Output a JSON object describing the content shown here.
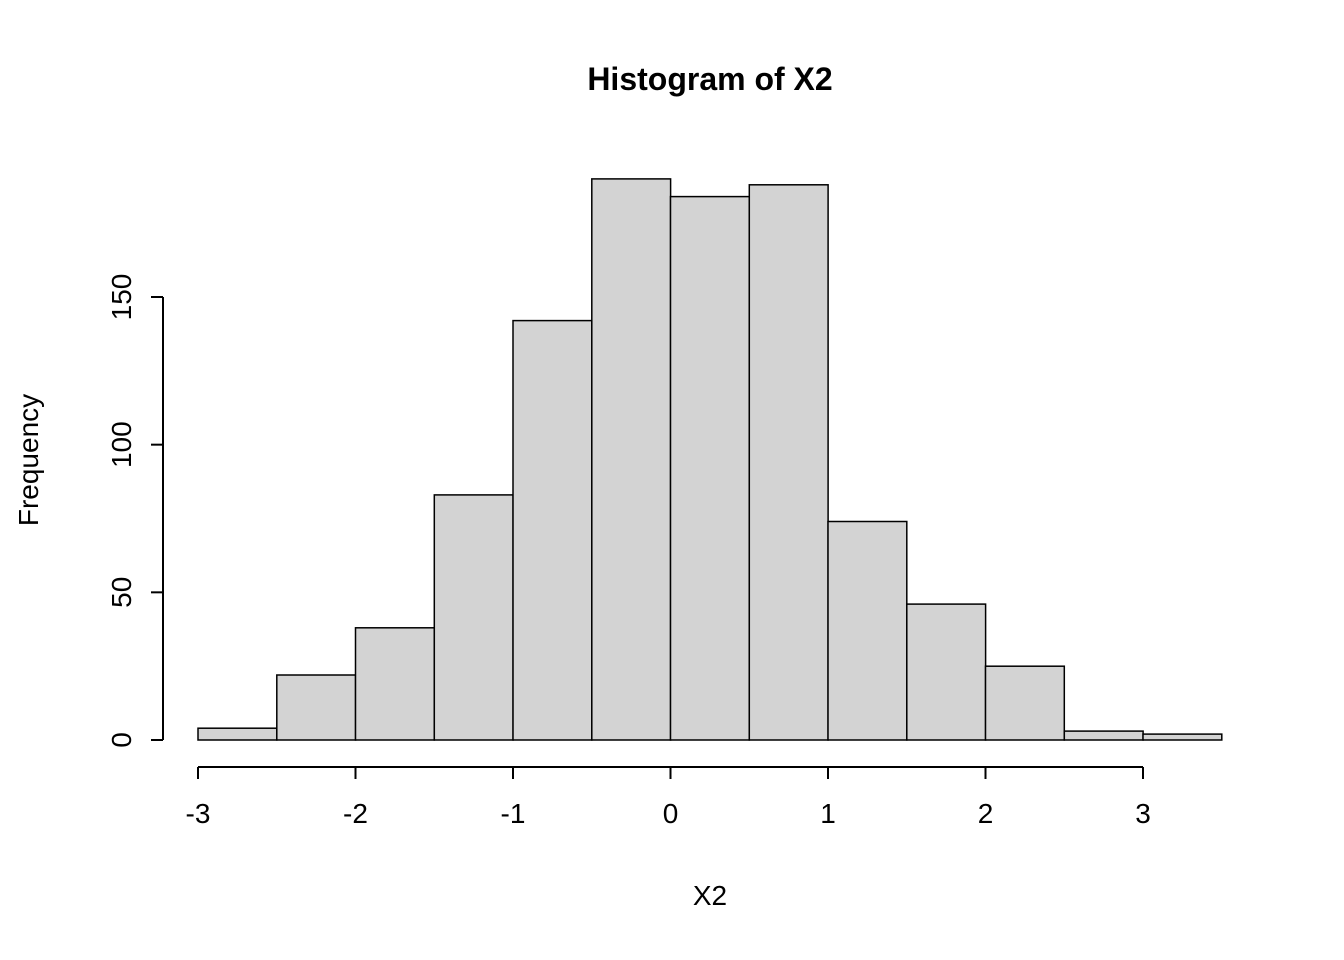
{
  "page": {
    "background": "#ffffff"
  },
  "chart_data": {
    "type": "bar",
    "subtype": "histogram",
    "title": "Histogram of X2",
    "xlabel": "X2",
    "ylabel": "Frequency",
    "breaks": [
      -3,
      -2.5,
      -2,
      -1.5,
      -1,
      -0.5,
      0,
      0.5,
      1,
      1.5,
      2,
      2.5,
      3,
      3.5
    ],
    "counts": [
      4,
      22,
      38,
      83,
      142,
      190,
      184,
      188,
      74,
      46,
      25,
      3,
      2
    ],
    "x_ticks": [
      -3,
      -2,
      -1,
      0,
      1,
      2,
      3
    ],
    "y_ticks": [
      0,
      50,
      100,
      150
    ],
    "xlim": [
      -3,
      3.5
    ],
    "ylim": [
      0,
      190
    ],
    "grid": "off",
    "legend": "none",
    "bar_fill": "#d3d3d3",
    "bar_stroke": "#000000",
    "axis_color": "#000000"
  }
}
